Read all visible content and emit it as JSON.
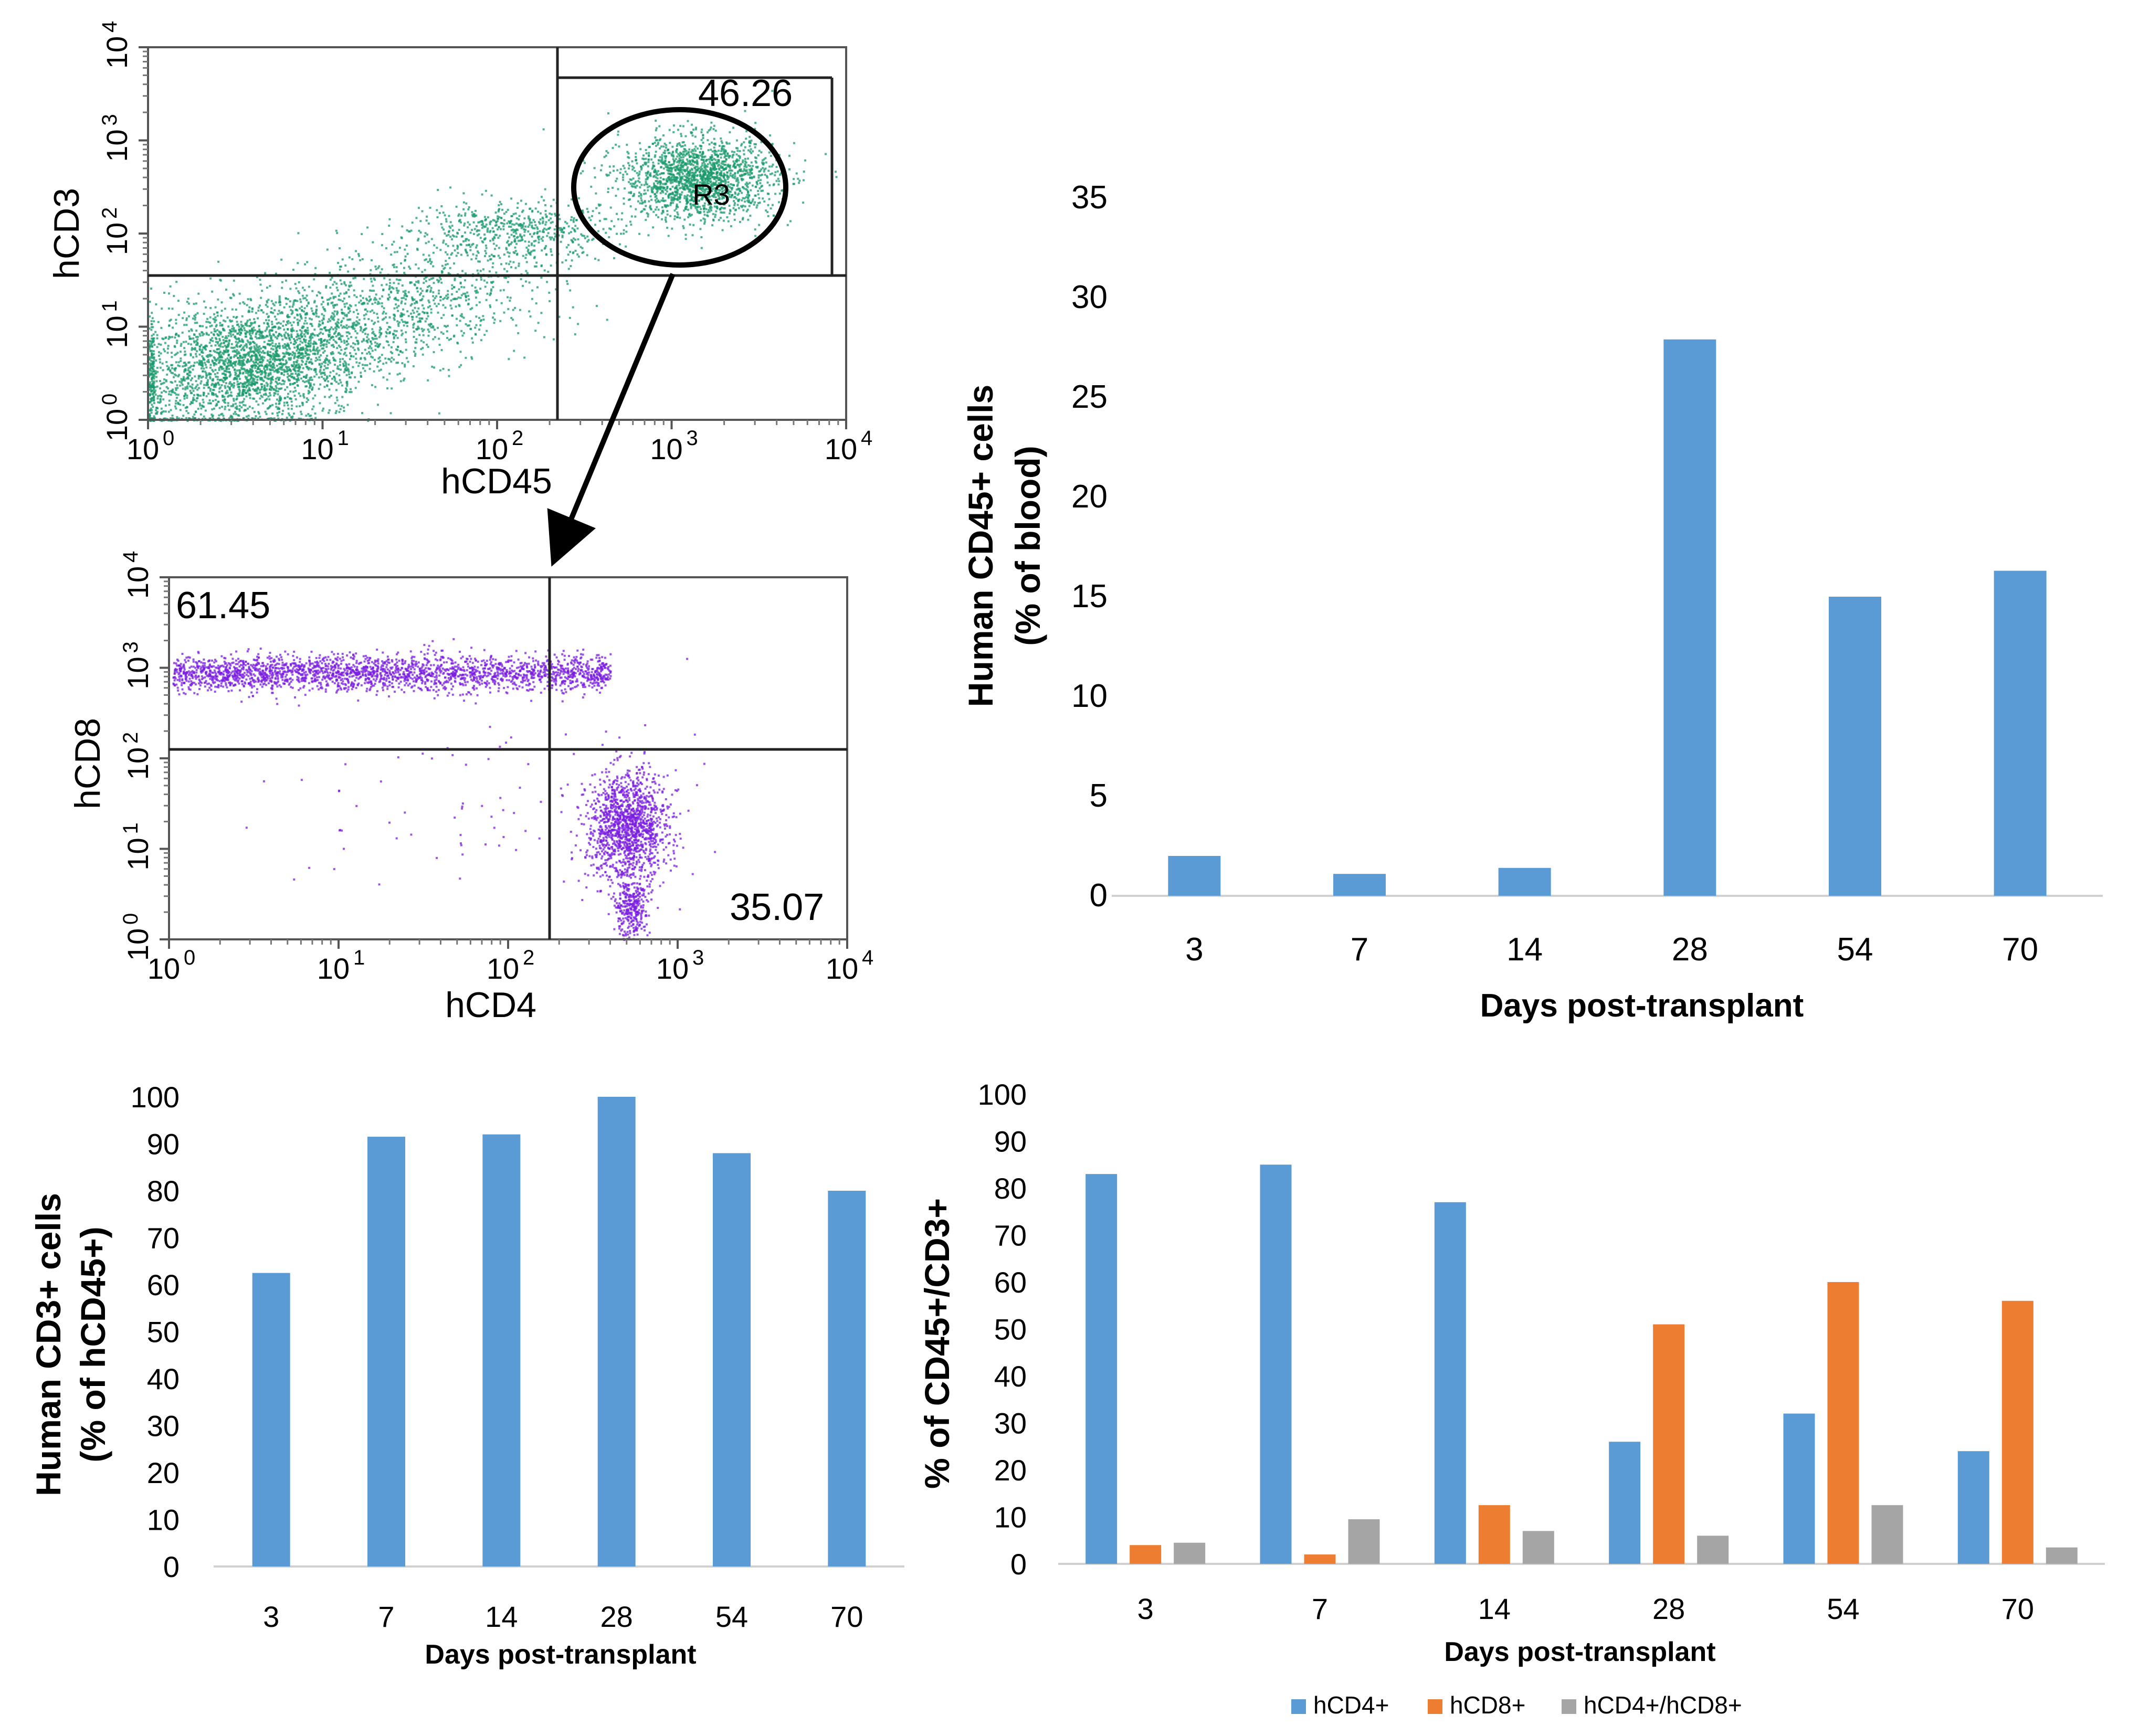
{
  "chart_data": [
    {
      "type": "scatter",
      "title": "",
      "xlabel": "hCD45",
      "ylabel": "hCD3",
      "x_scale": "log",
      "y_scale": "log",
      "xlim": [
        1,
        10000
      ],
      "ylim": [
        1,
        10000
      ],
      "tick_labels": [
        "10",
        "10",
        "10",
        "10",
        "10"
      ],
      "tick_exponents": [
        "0",
        "1",
        "2",
        "3",
        "4"
      ],
      "gate": {
        "label": "R3",
        "value": "46.26"
      },
      "point_color": "#1a9a6c"
    },
    {
      "type": "scatter",
      "title": "",
      "xlabel": "hCD4",
      "ylabel": "hCD8",
      "x_scale": "log",
      "y_scale": "log",
      "xlim": [
        1,
        10000
      ],
      "ylim": [
        1,
        10000
      ],
      "tick_labels": [
        "10",
        "10",
        "10",
        "10",
        "10"
      ],
      "tick_exponents": [
        "0",
        "1",
        "2",
        "3",
        "4"
      ],
      "quadrants": {
        "upper_left": "61.45",
        "lower_right": "35.07"
      },
      "point_color": "#7a1ee0"
    },
    {
      "type": "bar",
      "title": "",
      "categories": [
        "3",
        "7",
        "14",
        "28",
        "54",
        "70"
      ],
      "values": [
        2.0,
        1.1,
        1.4,
        27.9,
        15.0,
        16.3
      ],
      "xlabel": "Days post-transplant",
      "ylabel_lines": [
        "Human CD45+ cells",
        "(% of blood)"
      ],
      "ylim": [
        0,
        35
      ],
      "yticks": [
        "0",
        "5",
        "10",
        "15",
        "20",
        "25",
        "30",
        "35"
      ],
      "ytick_values": [
        0,
        5,
        10,
        15,
        20,
        25,
        30,
        35
      ],
      "grid": false,
      "color": "#5b9bd5"
    },
    {
      "type": "bar",
      "title": "",
      "categories": [
        "3",
        "7",
        "14",
        "28",
        "54",
        "70"
      ],
      "values": [
        62.5,
        91.5,
        92,
        100,
        88,
        80
      ],
      "xlabel": "Days post-transplant",
      "ylabel_lines": [
        "Human CD3+ cells",
        "(% of hCD45+)"
      ],
      "ylim": [
        0,
        100
      ],
      "yticks": [
        "0",
        "10",
        "20",
        "30",
        "40",
        "50",
        "60",
        "70",
        "80",
        "90",
        "100"
      ],
      "ytick_values": [
        0,
        10,
        20,
        30,
        40,
        50,
        60,
        70,
        80,
        90,
        100
      ],
      "grid": false,
      "color": "#5b9bd5"
    },
    {
      "type": "bar",
      "title": "",
      "categories": [
        "3",
        "7",
        "14",
        "28",
        "54",
        "70"
      ],
      "series": [
        {
          "name": "hCD4+",
          "values": [
            83,
            85,
            77,
            26,
            32,
            24
          ],
          "color": "#5b9bd5"
        },
        {
          "name": "hCD8+",
          "values": [
            4,
            2,
            12.5,
            51,
            60,
            56
          ],
          "color": "#ed7d31"
        },
        {
          "name": "hCD4+/hCD8+",
          "values": [
            4.5,
            9.5,
            7,
            6,
            12.5,
            3.5
          ],
          "color": "#a5a5a5"
        }
      ],
      "xlabel": "Days post-transplant",
      "ylabel": "% of CD45+/CD3+",
      "ylim": [
        0,
        100
      ],
      "yticks": [
        "0",
        "10",
        "20",
        "30",
        "40",
        "50",
        "60",
        "70",
        "80",
        "90",
        "100"
      ],
      "ytick_values": [
        0,
        10,
        20,
        30,
        40,
        50,
        60,
        70,
        80,
        90,
        100
      ],
      "legend_position": "bottom-center",
      "grid": false
    }
  ]
}
